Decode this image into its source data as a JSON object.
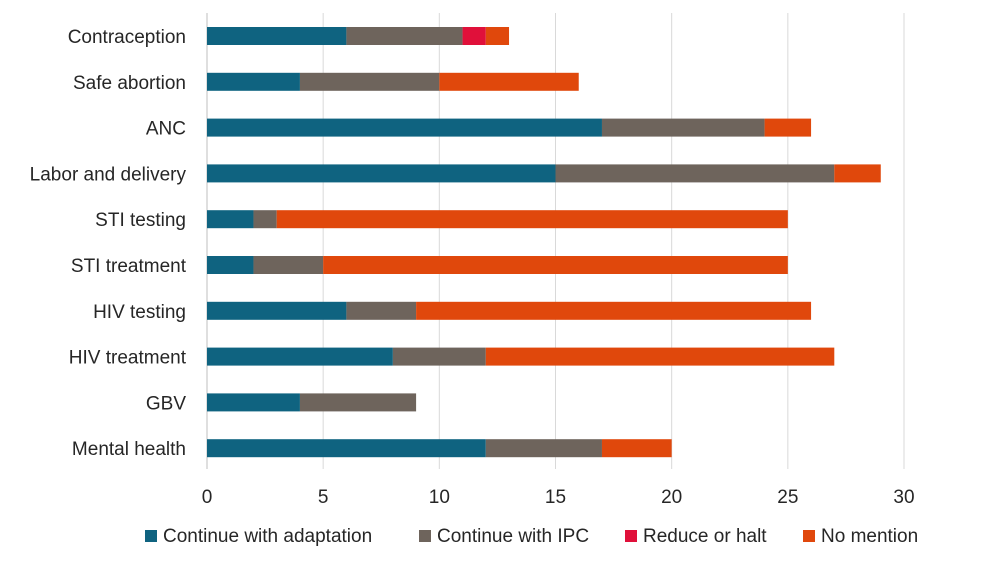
{
  "chart_data": {
    "type": "bar",
    "orientation": "horizontal",
    "stacked": true,
    "title": "",
    "xlabel": "",
    "ylabel": "",
    "categories": [
      "Contraception",
      "Safe abortion",
      "ANC",
      "Labor and delivery",
      "STI testing",
      "STI treatment",
      "HIV testing",
      "HIV treatment",
      "GBV",
      "Mental health"
    ],
    "series": [
      {
        "name": "Continue with adaptation",
        "color": "#0f6380",
        "values": [
          6,
          4,
          17,
          15,
          2,
          2,
          6,
          8,
          4,
          12
        ]
      },
      {
        "name": "Continue with IPC",
        "color": "#6e645c",
        "values": [
          5,
          6,
          7,
          12,
          1,
          3,
          3,
          4,
          5,
          5
        ]
      },
      {
        "name": "Reduce or halt",
        "color": "#e0103a",
        "values": [
          1,
          0,
          0,
          0,
          0,
          0,
          0,
          0,
          0,
          0
        ]
      },
      {
        "name": "No mention",
        "color": "#e0480c",
        "values": [
          1,
          6,
          2,
          2,
          22,
          20,
          17,
          15,
          0,
          3
        ]
      }
    ],
    "xlim": [
      0,
      30
    ],
    "xticks": [
      "0",
      "5",
      "10",
      "15",
      "20",
      "25",
      "30"
    ],
    "grid": "vertical",
    "legend": "bottom"
  }
}
